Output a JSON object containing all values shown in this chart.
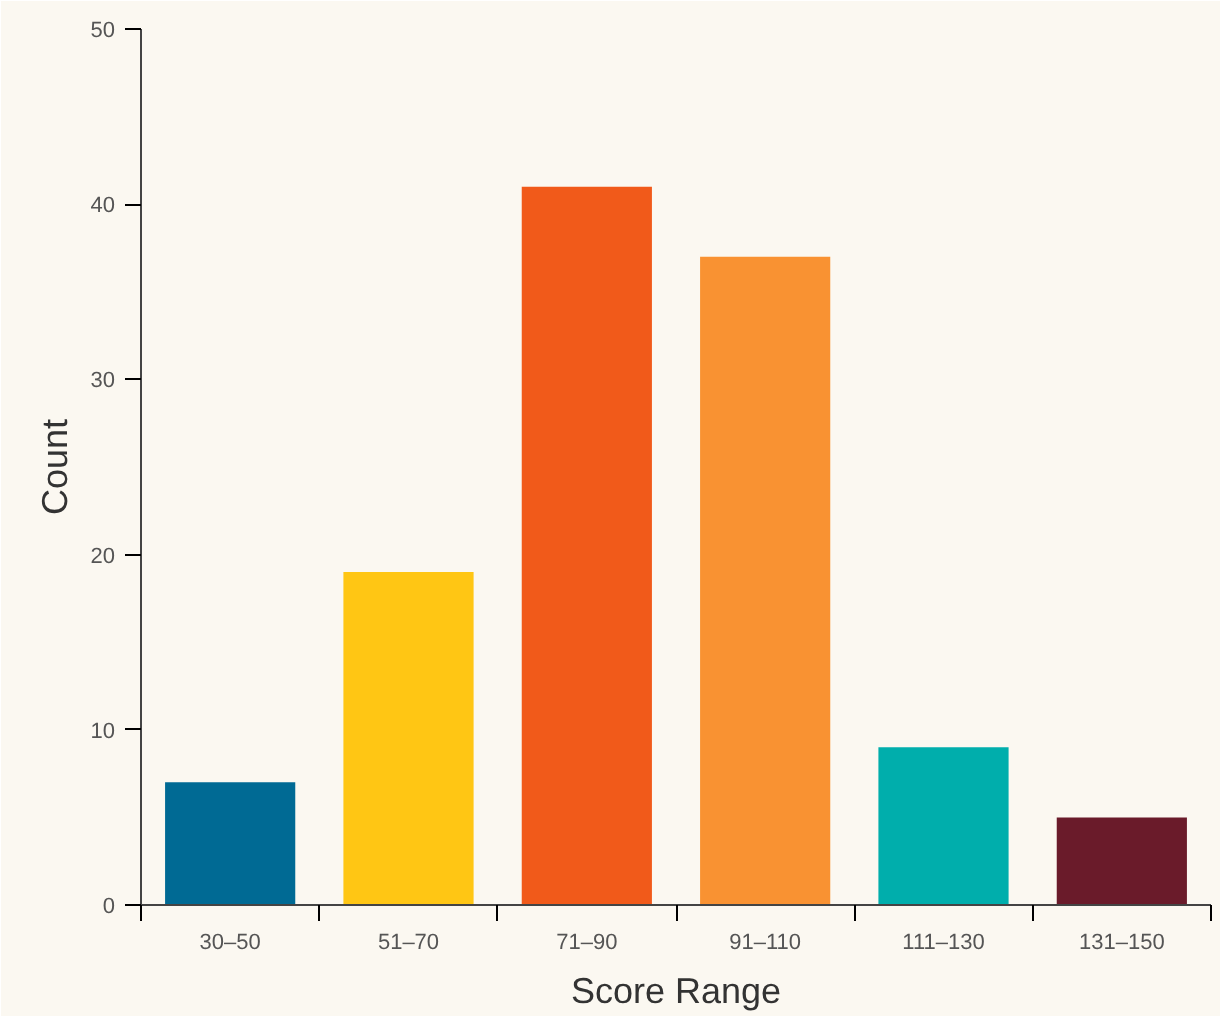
{
  "chart_data": {
    "type": "bar",
    "xlabel": "Score Range",
    "ylabel": "Count",
    "categories": [
      "30–50",
      "51–70",
      "71–90",
      "91–110",
      "111–130",
      "131–150"
    ],
    "values": [
      7,
      19,
      41,
      37,
      9,
      5
    ],
    "colors": [
      "#006a94",
      "#ffc614",
      "#f15a1a",
      "#f99232",
      "#00aeac",
      "#6a1b2a"
    ],
    "ylim": [
      0,
      50
    ],
    "yticks": [
      0,
      10,
      20,
      30,
      40,
      50
    ],
    "grid": false
  }
}
